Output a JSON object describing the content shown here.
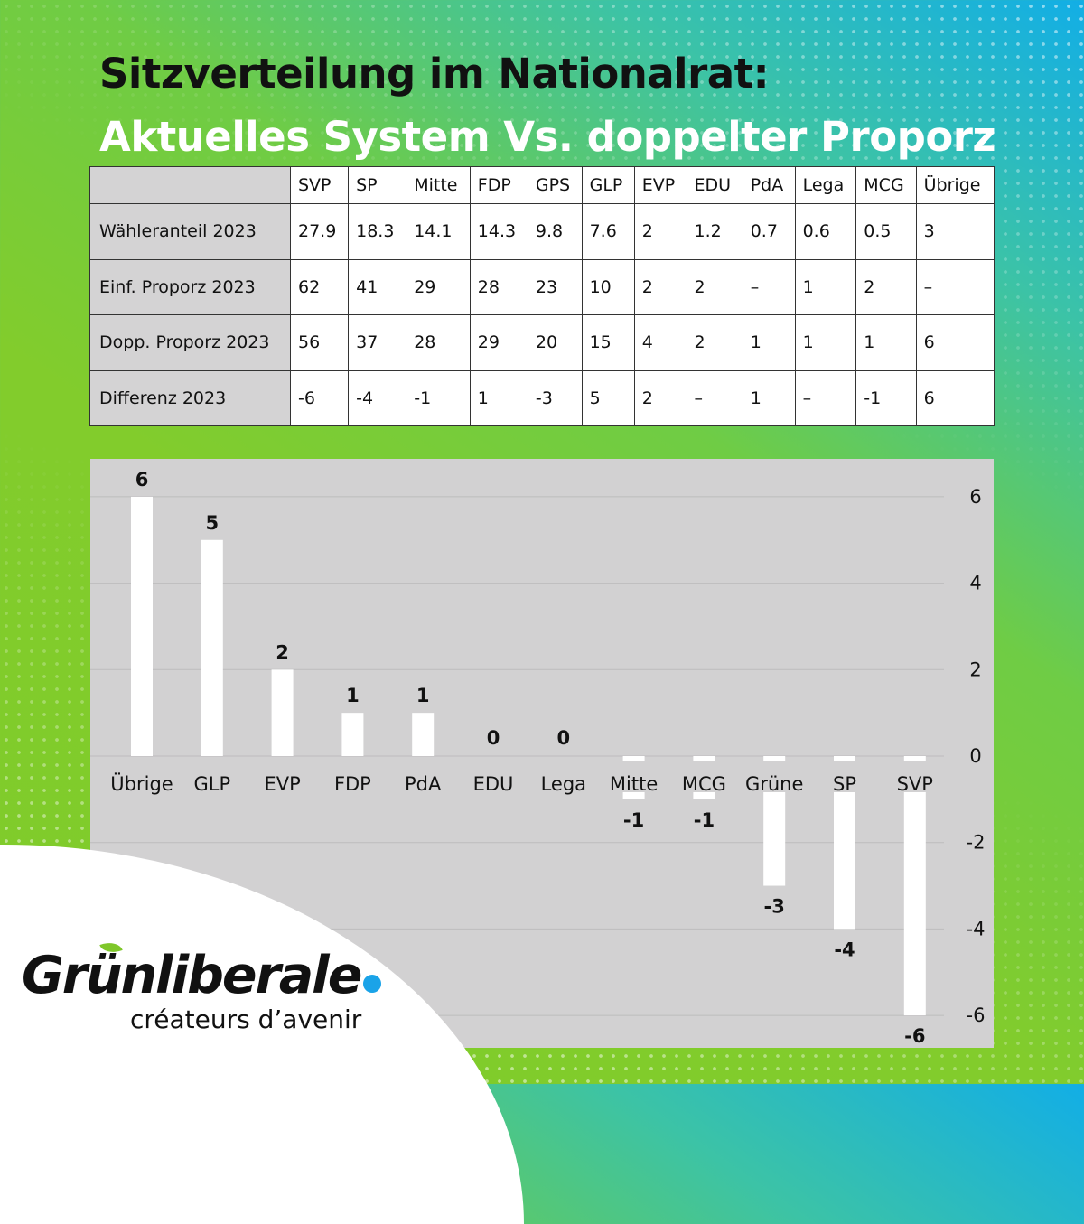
{
  "title": {
    "line1": "Sitzverteilung im Nationalrat:",
    "line2": "Aktuelles System Vs. doppelter Proporz"
  },
  "table": {
    "columns": [
      "SVP",
      "SP",
      "Mitte",
      "FDP",
      "GPS",
      "GLP",
      "EVP",
      "EDU",
      "PdA",
      "Lega",
      "MCG",
      "Übrige"
    ],
    "rows": [
      {
        "label": "Wähleranteil 2023",
        "values": [
          "27.9",
          "18.3",
          "14.1",
          "14.3",
          "9.8",
          "7.6",
          "2",
          "1.2",
          "0.7",
          "0.6",
          "0.5",
          "3"
        ]
      },
      {
        "label": "Einf. Proporz 2023",
        "values": [
          "62",
          "41",
          "29",
          "28",
          "23",
          "10",
          "2",
          "2",
          "–",
          "1",
          "2",
          "–"
        ]
      },
      {
        "label": "Dopp. Proporz 2023",
        "values": [
          "56",
          "37",
          "28",
          "29",
          "20",
          "15",
          "4",
          "2",
          "1",
          "1",
          "1",
          "6"
        ]
      },
      {
        "label": "Differenz 2023",
        "values": [
          "-6",
          "-4",
          "-1",
          "1",
          "-3",
          "5",
          "2",
          "–",
          "1",
          "–",
          "-1",
          "6"
        ]
      }
    ]
  },
  "chart_data": {
    "type": "bar",
    "categories": [
      "Übrige",
      "GLP",
      "EVP",
      "FDP",
      "PdA",
      "EDU",
      "Lega",
      "Mitte",
      "MCG",
      "Grüne",
      "SP",
      "SVP"
    ],
    "values": [
      6,
      5,
      2,
      1,
      1,
      0,
      0,
      -1,
      -1,
      -3,
      -4,
      -6
    ],
    "ylim": [
      -6.5,
      6.5
    ],
    "yticks": [
      6,
      4,
      2,
      0,
      -2,
      -4,
      -6
    ],
    "ytick_labels": [
      "6",
      "4",
      "2",
      "0",
      "-2",
      "-4",
      "-6"
    ],
    "y_axis_side": "right",
    "grid": true,
    "bar_color": "#ffffff",
    "background": "#d2d1d2"
  },
  "logo": {
    "brand": "Grünliberale",
    "tagline": "créateurs d’avenir",
    "accent": "#1aa3e8"
  }
}
